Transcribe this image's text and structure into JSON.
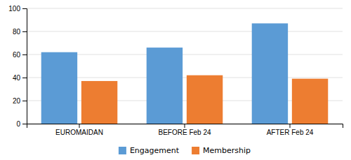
{
  "chart_data": {
    "type": "bar",
    "categories": [
      "EUROMAIDAN",
      "BEFORE Feb 24",
      "AFTER Feb 24"
    ],
    "series": [
      {
        "name": "Engagement",
        "color": "#5B9BD5",
        "values": [
          62,
          66,
          87
        ]
      },
      {
        "name": "Membership",
        "color": "#ED7D31",
        "values": [
          37,
          42,
          39
        ]
      }
    ],
    "ylim": [
      0,
      100
    ],
    "yticks": [
      0,
      20,
      40,
      60,
      80,
      100
    ],
    "grid": true,
    "legend": "bottom"
  }
}
